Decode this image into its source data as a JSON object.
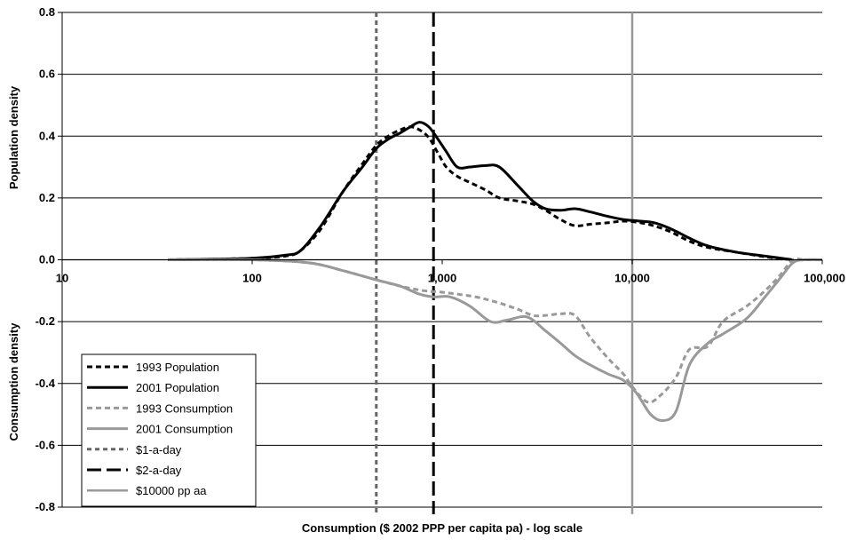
{
  "chart_data": {
    "type": "line",
    "xlabel": "Consumption ($ 2002 PPP per capita pa) - log scale",
    "ylabel_upper": "Population density",
    "ylabel_lower": "Consumption density",
    "x_scale": "log",
    "xlim": [
      10,
      100000
    ],
    "ylim": [
      -0.8,
      0.8
    ],
    "x_ticks": [
      10,
      100,
      1000,
      10000,
      100000
    ],
    "x_tick_labels": [
      "10",
      "100",
      "1,000",
      "10,000",
      "100,000"
    ],
    "y_ticks": [
      -0.8,
      -0.6,
      -0.4,
      -0.2,
      0.0,
      0.2,
      0.4,
      0.6,
      0.8
    ],
    "y_tick_labels": [
      "-0.8",
      "-0.6",
      "-0.4",
      "-0.2",
      "0.0",
      "0.2",
      "0.4",
      "0.6",
      "0.8"
    ],
    "grid": "horizontal",
    "legend_position": "bottom-left",
    "series": [
      {
        "name": "1993 Population",
        "color": "#000000",
        "dash": "dashed",
        "x": [
          36,
          60,
          100,
          150,
          180,
          230,
          300,
          380,
          450,
          520,
          600,
          680,
          760,
          850,
          950,
          1050,
          1200,
          1400,
          1700,
          2000,
          2500,
          3000,
          3500,
          4200,
          5000,
          6000,
          7500,
          9000,
          11000,
          13000,
          16000,
          20000,
          25000,
          35000,
          50000,
          70000
        ],
        "y": [
          0.0,
          0.002,
          0.005,
          0.012,
          0.03,
          0.1,
          0.22,
          0.31,
          0.37,
          0.4,
          0.42,
          0.43,
          0.42,
          0.395,
          0.345,
          0.3,
          0.27,
          0.25,
          0.225,
          0.2,
          0.19,
          0.18,
          0.16,
          0.13,
          0.11,
          0.115,
          0.12,
          0.125,
          0.12,
          0.11,
          0.09,
          0.06,
          0.04,
          0.025,
          0.01,
          0.0
        ]
      },
      {
        "name": "2001 Population",
        "color": "#000000",
        "dash": "solid",
        "x": [
          36,
          60,
          100,
          150,
          180,
          230,
          300,
          380,
          450,
          520,
          600,
          680,
          760,
          850,
          950,
          1050,
          1200,
          1400,
          1700,
          2000,
          2500,
          3000,
          3500,
          4200,
          5000,
          6000,
          7500,
          9000,
          11000,
          13000,
          16000,
          20000,
          25000,
          35000,
          50000,
          70000
        ],
        "y": [
          0.0,
          0.002,
          0.005,
          0.015,
          0.03,
          0.11,
          0.22,
          0.3,
          0.36,
          0.39,
          0.41,
          0.43,
          0.445,
          0.43,
          0.39,
          0.35,
          0.3,
          0.3,
          0.305,
          0.3,
          0.24,
          0.19,
          0.165,
          0.16,
          0.165,
          0.155,
          0.14,
          0.13,
          0.125,
          0.12,
          0.1,
          0.07,
          0.045,
          0.025,
          0.012,
          0.0
        ]
      },
      {
        "name": "1993 Consumption",
        "color": "#999999",
        "dash": "dashed",
        "x": [
          36,
          100,
          200,
          300,
          450,
          600,
          800,
          1000,
          1500,
          2000,
          2500,
          3000,
          3500,
          4200,
          5000,
          6000,
          7500,
          9000,
          10000,
          12000,
          14000,
          17000,
          20000,
          25000,
          30000,
          40000,
          50000,
          60000,
          70000,
          80000,
          100000
        ],
        "y": [
          0.0,
          0.0,
          -0.01,
          -0.035,
          -0.065,
          -0.085,
          -0.1,
          -0.105,
          -0.12,
          -0.14,
          -0.16,
          -0.18,
          -0.18,
          -0.175,
          -0.18,
          -0.25,
          -0.32,
          -0.37,
          -0.41,
          -0.46,
          -0.44,
          -0.38,
          -0.29,
          -0.28,
          -0.2,
          -0.15,
          -0.1,
          -0.05,
          0.0,
          0.0,
          0.0
        ]
      },
      {
        "name": "2001 Consumption",
        "color": "#999999",
        "dash": "solid",
        "x": [
          36,
          100,
          200,
          300,
          450,
          600,
          750,
          900,
          1100,
          1400,
          1800,
          2200,
          2800,
          3500,
          4200,
          5000,
          6000,
          7500,
          9000,
          10500,
          12500,
          14500,
          17000,
          20000,
          25000,
          30000,
          40000,
          50000,
          60000,
          70000,
          80000,
          100000
        ],
        "y": [
          0.0,
          0.0,
          -0.01,
          -0.035,
          -0.065,
          -0.085,
          -0.11,
          -0.12,
          -0.12,
          -0.15,
          -0.2,
          -0.195,
          -0.185,
          -0.23,
          -0.27,
          -0.31,
          -0.34,
          -0.37,
          -0.39,
          -0.43,
          -0.5,
          -0.52,
          -0.49,
          -0.34,
          -0.27,
          -0.24,
          -0.19,
          -0.12,
          -0.06,
          -0.01,
          0.0,
          0.0
        ]
      }
    ],
    "reference_lines": [
      {
        "name": "$1-a-day",
        "x": 450,
        "color": "#666666",
        "dash": "short-dash"
      },
      {
        "name": "$2-a-day",
        "x": 900,
        "color": "#000000",
        "dash": "long-dash"
      },
      {
        "name": "$10000 pp aa",
        "x": 10000,
        "color": "#999999",
        "dash": "solid"
      }
    ],
    "legend": [
      {
        "label": "1993 Population",
        "color": "#000000",
        "dash": "dashed"
      },
      {
        "label": "2001 Population",
        "color": "#000000",
        "dash": "solid"
      },
      {
        "label": "1993 Consumption",
        "color": "#999999",
        "dash": "dashed"
      },
      {
        "label": "2001 Consumption",
        "color": "#999999",
        "dash": "solid"
      },
      {
        "label": "$1-a-day",
        "color": "#666666",
        "dash": "short-dash"
      },
      {
        "label": "$2-a-day",
        "color": "#000000",
        "dash": "long-dash"
      },
      {
        "label": "$10000 pp aa",
        "color": "#999999",
        "dash": "solid"
      }
    ]
  }
}
